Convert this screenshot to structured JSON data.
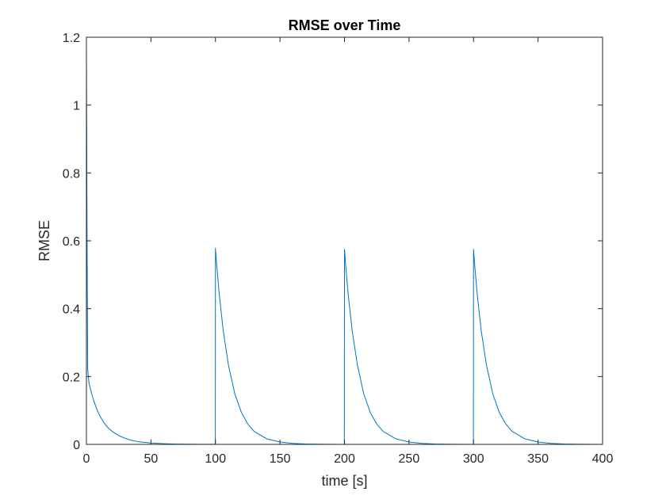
{
  "chart_data": {
    "type": "line",
    "title": "RMSE over Time",
    "xlabel": "time [s]",
    "ylabel": "RMSE",
    "xlim": [
      0,
      400
    ],
    "ylim": [
      0,
      1.2
    ],
    "xticks": [
      0,
      50,
      100,
      150,
      200,
      250,
      300,
      350,
      400
    ],
    "yticks": [
      0,
      0.2,
      0.4,
      0.6,
      0.8,
      1,
      1.2
    ],
    "xtick_labels": [
      "0",
      "50",
      "100",
      "150",
      "200",
      "250",
      "300",
      "350",
      "400"
    ],
    "ytick_labels": [
      "0",
      "0.2",
      "0.4",
      "0.6",
      "0.8",
      "1",
      "1.2"
    ],
    "grid": false,
    "legend": "none",
    "series": [
      {
        "color": "#0072BD",
        "x": [
          0,
          0.5,
          1,
          2,
          4,
          6,
          8,
          10,
          13,
          16,
          20,
          25,
          30,
          35,
          40,
          50,
          60,
          70,
          80,
          90,
          99.9,
          100,
          101,
          103,
          106,
          110,
          115,
          120,
          125,
          130,
          140,
          150,
          160,
          170,
          180,
          190,
          199.9,
          200,
          201,
          203,
          206,
          210,
          215,
          220,
          225,
          230,
          240,
          250,
          260,
          270,
          280,
          290,
          299.9,
          300,
          301,
          303,
          306,
          310,
          315,
          320,
          325,
          330,
          340,
          350,
          360,
          370,
          380,
          390,
          400
        ],
        "y": [
          1.16,
          0.6,
          0.22,
          0.18,
          0.15,
          0.125,
          0.104,
          0.087,
          0.067,
          0.052,
          0.038,
          0.026,
          0.018,
          0.012,
          0.008,
          0.004,
          0.002,
          0.001,
          0.0005,
          0.0003,
          0.0002,
          0.578,
          0.527,
          0.44,
          0.336,
          0.235,
          0.149,
          0.095,
          0.06,
          0.038,
          0.016,
          0.007,
          0.003,
          0.0012,
          0.0005,
          0.0002,
          0.0001,
          0.575,
          0.524,
          0.437,
          0.334,
          0.234,
          0.148,
          0.094,
          0.06,
          0.038,
          0.016,
          0.007,
          0.003,
          0.0012,
          0.0005,
          0.0002,
          0.0001,
          0.575,
          0.524,
          0.437,
          0.334,
          0.234,
          0.148,
          0.094,
          0.06,
          0.038,
          0.016,
          0.007,
          0.003,
          0.0012,
          0.0005,
          0.0002,
          0.0001
        ]
      }
    ]
  }
}
